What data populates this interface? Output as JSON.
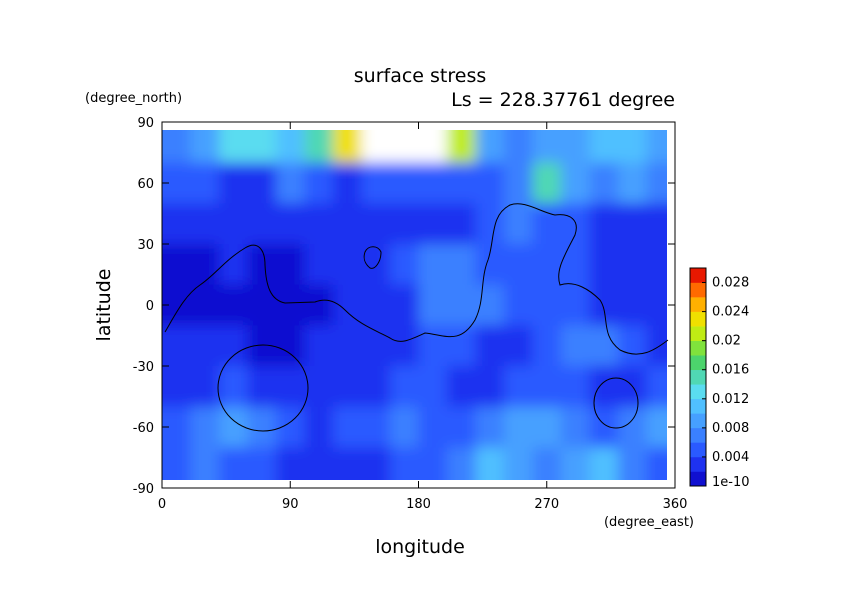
{
  "chart_data": {
    "type": "heatmap",
    "title": "surface stress",
    "subtitle": "Ls = 228.37761 degree",
    "x_label": "longitude",
    "y_label": "latitude",
    "x_units": "(degree_east)",
    "y_units": "(degree_north)",
    "xlim": [
      0,
      360
    ],
    "ylim": [
      -90,
      90
    ],
    "xticks": [
      0,
      90,
      180,
      270,
      360
    ],
    "yticks": [
      -90,
      -60,
      -30,
      0,
      30,
      60,
      90
    ],
    "x": [
      10,
      30,
      50,
      70,
      90,
      110,
      130,
      150,
      170,
      190,
      210,
      230,
      250,
      270,
      290,
      310,
      330,
      350
    ],
    "y": [
      80,
      60,
      40,
      20,
      0,
      -20,
      -40,
      -60,
      -80
    ],
    "z": [
      [
        0.008,
        0.01,
        0.014,
        0.013,
        0.012,
        0.016,
        0.024,
        0.032,
        0.034,
        0.03,
        0.022,
        0.01,
        0.008,
        0.009,
        0.01,
        0.011,
        0.012,
        0.01
      ],
      [
        0.006,
        0.005,
        0.004,
        0.004,
        0.008,
        0.005,
        0.004,
        0.006,
        0.006,
        0.006,
        0.005,
        0.006,
        0.008,
        0.016,
        0.01,
        0.008,
        0.009,
        0.008
      ],
      [
        0.003,
        0.003,
        0.004,
        0.004,
        0.004,
        0.003,
        0.004,
        0.003,
        0.004,
        0.004,
        0.004,
        0.006,
        0.008,
        0.006,
        0.005,
        0.004,
        0.003,
        0.004
      ],
      [
        0.002,
        0.002,
        0.003,
        0.002,
        0.002,
        0.003,
        0.003,
        0.004,
        0.006,
        0.008,
        0.008,
        0.006,
        0.005,
        0.006,
        0.005,
        0.004,
        0.004,
        0.003
      ],
      [
        0.002,
        0.002,
        0.002,
        0.002,
        0.002,
        0.002,
        0.003,
        0.004,
        0.004,
        0.007,
        0.008,
        0.008,
        0.006,
        0.005,
        0.006,
        0.004,
        0.004,
        0.003
      ],
      [
        0.003,
        0.003,
        0.003,
        0.002,
        0.002,
        0.003,
        0.003,
        0.003,
        0.004,
        0.005,
        0.006,
        0.004,
        0.004,
        0.006,
        0.008,
        0.007,
        0.006,
        0.004
      ],
      [
        0.004,
        0.004,
        0.005,
        0.004,
        0.004,
        0.003,
        0.003,
        0.004,
        0.006,
        0.005,
        0.004,
        0.004,
        0.005,
        0.006,
        0.006,
        0.004,
        0.004,
        0.005
      ],
      [
        0.006,
        0.008,
        0.009,
        0.007,
        0.005,
        0.004,
        0.005,
        0.006,
        0.008,
        0.006,
        0.006,
        0.008,
        0.009,
        0.01,
        0.008,
        0.006,
        0.008,
        0.009
      ],
      [
        0.005,
        0.008,
        0.006,
        0.005,
        0.004,
        0.004,
        0.004,
        0.004,
        0.006,
        0.005,
        0.008,
        0.012,
        0.01,
        0.008,
        0.009,
        0.012,
        0.008,
        0.006
      ]
    ],
    "colorbar": {
      "clim": [
        1e-10,
        0.03
      ],
      "ticks": [
        {
          "value": 1e-10,
          "label": "1e-10"
        },
        0.004,
        0.008,
        0.012,
        0.016,
        0.02,
        0.024,
        0.028
      ],
      "colors": [
        "#1010d0",
        "#1e32f0",
        "#2a5aff",
        "#3a80ff",
        "#46a0ff",
        "#50c0ff",
        "#5adcf0",
        "#50d8b4",
        "#4cd46c",
        "#80e23c",
        "#c0ec14",
        "#f0e000",
        "#ffb000",
        "#ff6a00",
        "#e81800"
      ],
      "over_color": "#ffffff"
    }
  }
}
